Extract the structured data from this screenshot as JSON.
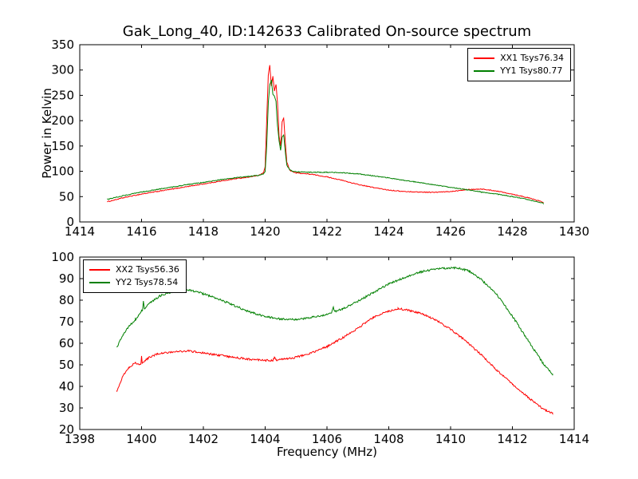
{
  "chart_data": [
    {
      "type": "line",
      "title": "Gak_Long_40, ID:142633 Calibrated On-source spectrum",
      "ylabel": "Power in Kelvin",
      "xlim": [
        1414,
        1430
      ],
      "ylim": [
        0,
        350
      ],
      "xticks": [
        1414,
        1416,
        1418,
        1420,
        1422,
        1424,
        1426,
        1428,
        1430
      ],
      "yticks": [
        0,
        50,
        100,
        150,
        200,
        250,
        300,
        350
      ],
      "legend_position": "top-right",
      "grid": false,
      "noise": 0.8,
      "series": [
        {
          "name": "XX1 Tsys76.34",
          "color": "#ff0000",
          "points": [
            [
              1414.9,
              40
            ],
            [
              1415.5,
              49
            ],
            [
              1416,
              55
            ],
            [
              1416.5,
              60
            ],
            [
              1417,
              65
            ],
            [
              1417.5,
              70
            ],
            [
              1418,
              75
            ],
            [
              1418.5,
              80
            ],
            [
              1419,
              85
            ],
            [
              1419.5,
              89
            ],
            [
              1419.8,
              92
            ],
            [
              1419.95,
              97
            ],
            [
              1420.0,
              110
            ],
            [
              1420.05,
              200
            ],
            [
              1420.1,
              290
            ],
            [
              1420.15,
              310
            ],
            [
              1420.2,
              268
            ],
            [
              1420.25,
              288
            ],
            [
              1420.3,
              258
            ],
            [
              1420.35,
              272
            ],
            [
              1420.4,
              235
            ],
            [
              1420.45,
              170
            ],
            [
              1420.5,
              150
            ],
            [
              1420.55,
              198
            ],
            [
              1420.6,
              205
            ],
            [
              1420.65,
              160
            ],
            [
              1420.7,
              118
            ],
            [
              1420.8,
              102
            ],
            [
              1420.9,
              99
            ],
            [
              1421,
              97
            ],
            [
              1421.5,
              94
            ],
            [
              1422,
              89
            ],
            [
              1422.5,
              82
            ],
            [
              1423,
              74
            ],
            [
              1423.5,
              68
            ],
            [
              1424,
              63
            ],
            [
              1424.5,
              60
            ],
            [
              1425,
              59
            ],
            [
              1425.5,
              58.5
            ],
            [
              1426,
              60
            ],
            [
              1426.5,
              64
            ],
            [
              1427,
              65
            ],
            [
              1427.5,
              61
            ],
            [
              1428,
              55
            ],
            [
              1428.5,
              48
            ],
            [
              1429,
              39
            ]
          ]
        },
        {
          "name": "YY1 Tsys80.77",
          "color": "#008000",
          "points": [
            [
              1414.9,
              45
            ],
            [
              1415.5,
              53
            ],
            [
              1416,
              59
            ],
            [
              1416.5,
              64
            ],
            [
              1417,
              69
            ],
            [
              1417.5,
              74
            ],
            [
              1418,
              78
            ],
            [
              1418.5,
              83
            ],
            [
              1419,
              87
            ],
            [
              1419.5,
              90
            ],
            [
              1419.8,
              92
            ],
            [
              1419.95,
              95
            ],
            [
              1420.0,
              100
            ],
            [
              1420.05,
              150
            ],
            [
              1420.1,
              235
            ],
            [
              1420.15,
              272
            ],
            [
              1420.2,
              280
            ],
            [
              1420.25,
              252
            ],
            [
              1420.3,
              248
            ],
            [
              1420.35,
              238
            ],
            [
              1420.4,
              190
            ],
            [
              1420.45,
              160
            ],
            [
              1420.5,
              142
            ],
            [
              1420.55,
              168
            ],
            [
              1420.6,
              172
            ],
            [
              1420.65,
              140
            ],
            [
              1420.7,
              112
            ],
            [
              1420.8,
              103
            ],
            [
              1420.9,
              100
            ],
            [
              1421,
              99
            ],
            [
              1421.5,
              98
            ],
            [
              1422,
              98
            ],
            [
              1422.5,
              97
            ],
            [
              1423,
              95
            ],
            [
              1423.5,
              91
            ],
            [
              1424,
              87
            ],
            [
              1424.5,
              82
            ],
            [
              1425,
              78
            ],
            [
              1425.5,
              73
            ],
            [
              1426,
              68
            ],
            [
              1426.5,
              64
            ],
            [
              1427,
              59
            ],
            [
              1427.5,
              55
            ],
            [
              1428,
              50
            ],
            [
              1428.5,
              44
            ],
            [
              1429,
              37
            ]
          ]
        }
      ]
    },
    {
      "type": "line",
      "xlabel": "Frequency (MHz)",
      "xlim": [
        1398,
        1414
      ],
      "ylim": [
        20,
        100
      ],
      "xticks": [
        1398,
        1400,
        1402,
        1404,
        1406,
        1408,
        1410,
        1412,
        1414
      ],
      "yticks": [
        20,
        30,
        40,
        50,
        60,
        70,
        80,
        90,
        100
      ],
      "legend_position": "top-left",
      "grid": false,
      "noise": 0.45,
      "series": [
        {
          "name": "XX2 Tsys56.36",
          "color": "#ff0000",
          "points": [
            [
              1399.2,
              38
            ],
            [
              1399.4,
              45
            ],
            [
              1399.6,
              49
            ],
            [
              1399.8,
              51
            ],
            [
              1399.98,
              50
            ],
            [
              1400.0,
              54.5
            ],
            [
              1400.02,
              51
            ],
            [
              1400.2,
              53
            ],
            [
              1400.5,
              55
            ],
            [
              1401.0,
              56
            ],
            [
              1401.5,
              56.5
            ],
            [
              1402.0,
              55.5
            ],
            [
              1402.5,
              54.5
            ],
            [
              1403.0,
              53.5
            ],
            [
              1403.5,
              52.5
            ],
            [
              1404.0,
              52
            ],
            [
              1404.25,
              52.1
            ],
            [
              1404.3,
              53.5
            ],
            [
              1404.35,
              52.2
            ],
            [
              1404.5,
              52.5
            ],
            [
              1405.0,
              53.5
            ],
            [
              1405.5,
              55.5
            ],
            [
              1406.0,
              58.5
            ],
            [
              1406.5,
              62.5
            ],
            [
              1407.0,
              67
            ],
            [
              1407.5,
              72
            ],
            [
              1408.0,
              75
            ],
            [
              1408.3,
              76
            ],
            [
              1408.6,
              75.5
            ],
            [
              1409.0,
              74
            ],
            [
              1409.5,
              71
            ],
            [
              1410.0,
              66.5
            ],
            [
              1410.5,
              61
            ],
            [
              1411.0,
              54.5
            ],
            [
              1411.5,
              47.5
            ],
            [
              1412.0,
              41
            ],
            [
              1412.5,
              35
            ],
            [
              1413.0,
              29.5
            ],
            [
              1413.3,
              27.5
            ]
          ]
        },
        {
          "name": "YY2 Tsys78.54",
          "color": "#008000",
          "points": [
            [
              1399.2,
              58
            ],
            [
              1399.4,
              64
            ],
            [
              1399.6,
              68
            ],
            [
              1399.8,
              71
            ],
            [
              1400.0,
              75
            ],
            [
              1400.03,
              75.3
            ],
            [
              1400.06,
              79.5
            ],
            [
              1400.09,
              76
            ],
            [
              1400.3,
              79
            ],
            [
              1400.6,
              82
            ],
            [
              1401.0,
              84
            ],
            [
              1401.3,
              84.8
            ],
            [
              1401.6,
              84.5
            ],
            [
              1402.0,
              83
            ],
            [
              1402.5,
              80.5
            ],
            [
              1403.0,
              77.5
            ],
            [
              1403.5,
              74.5
            ],
            [
              1404.0,
              72.5
            ],
            [
              1404.5,
              71.2
            ],
            [
              1405.0,
              71
            ],
            [
              1405.5,
              72
            ],
            [
              1406.0,
              73.5
            ],
            [
              1406.15,
              74.2
            ],
            [
              1406.2,
              77
            ],
            [
              1406.25,
              74.8
            ],
            [
              1406.5,
              76
            ],
            [
              1407.0,
              79.5
            ],
            [
              1407.5,
              83.5
            ],
            [
              1408.0,
              87.5
            ],
            [
              1408.5,
              90.5
            ],
            [
              1409.0,
              93
            ],
            [
              1409.5,
              94.5
            ],
            [
              1410.0,
              95
            ],
            [
              1410.3,
              94.8
            ],
            [
              1410.6,
              93.5
            ],
            [
              1411.0,
              89.5
            ],
            [
              1411.5,
              82.5
            ],
            [
              1412.0,
              72.5
            ],
            [
              1412.5,
              61.5
            ],
            [
              1413.0,
              50.5
            ],
            [
              1413.3,
              45.5
            ]
          ]
        }
      ]
    }
  ]
}
